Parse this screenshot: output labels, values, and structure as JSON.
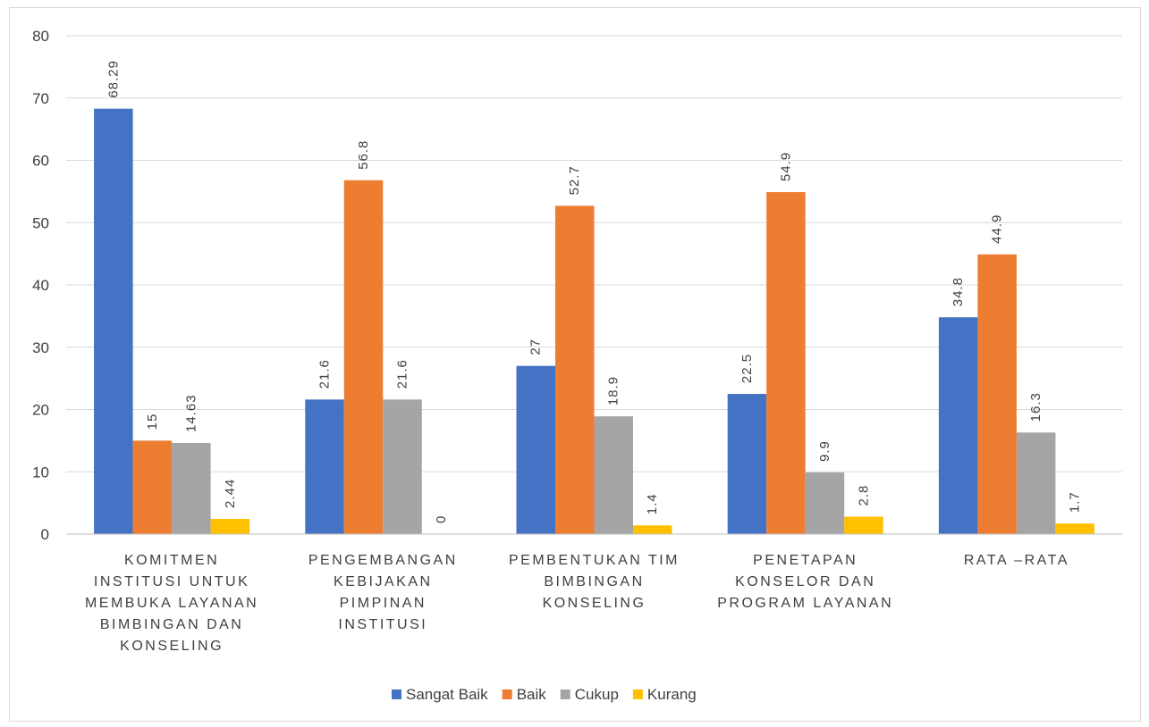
{
  "chart_data": {
    "type": "bar",
    "title": "",
    "xlabel": "",
    "ylabel": "",
    "ylim": [
      0,
      80
    ],
    "yticks": [
      0,
      10,
      20,
      30,
      40,
      50,
      60,
      70,
      80
    ],
    "grid": true,
    "legend_position": "bottom",
    "categories": [
      [
        "KOMITMEN",
        "INSTITUSI UNTUK",
        "MEMBUKA LAYANAN",
        "BIMBINGAN DAN",
        "KONSELING"
      ],
      [
        "PENGEMBANGAN",
        "KEBIJAKAN",
        "PIMPINAN",
        "INSTITUSI"
      ],
      [
        "PEMBENTUKAN TIM",
        "BIMBINGAN",
        "KONSELING"
      ],
      [
        "PENETAPAN",
        "KONSELOR DAN",
        "PROGRAM LAYANAN"
      ],
      [
        "RATA –RATA"
      ]
    ],
    "series": [
      {
        "name": "Sangat Baik",
        "color": "#4472C4",
        "values": [
          68.29,
          21.6,
          27,
          22.5,
          34.8
        ],
        "labels": [
          "68.29",
          "21.6",
          "27",
          "22.5",
          "34.8"
        ]
      },
      {
        "name": "Baik",
        "color": "#ED7D31",
        "values": [
          15,
          56.8,
          52.7,
          54.9,
          44.9
        ],
        "labels": [
          "15",
          "56.8",
          "52.7",
          "54.9",
          "44.9"
        ]
      },
      {
        "name": "Cukup",
        "color": "#A5A5A5",
        "values": [
          14.63,
          21.6,
          18.9,
          9.9,
          16.3
        ],
        "labels": [
          "14.63",
          "21.6",
          "18.9",
          "9.9",
          "16.3"
        ]
      },
      {
        "name": "Kurang",
        "color": "#FFC000",
        "values": [
          2.44,
          0,
          1.4,
          2.8,
          1.7
        ],
        "labels": [
          "2.44",
          "0",
          "1.4",
          "2.8",
          "1.7"
        ]
      }
    ]
  }
}
